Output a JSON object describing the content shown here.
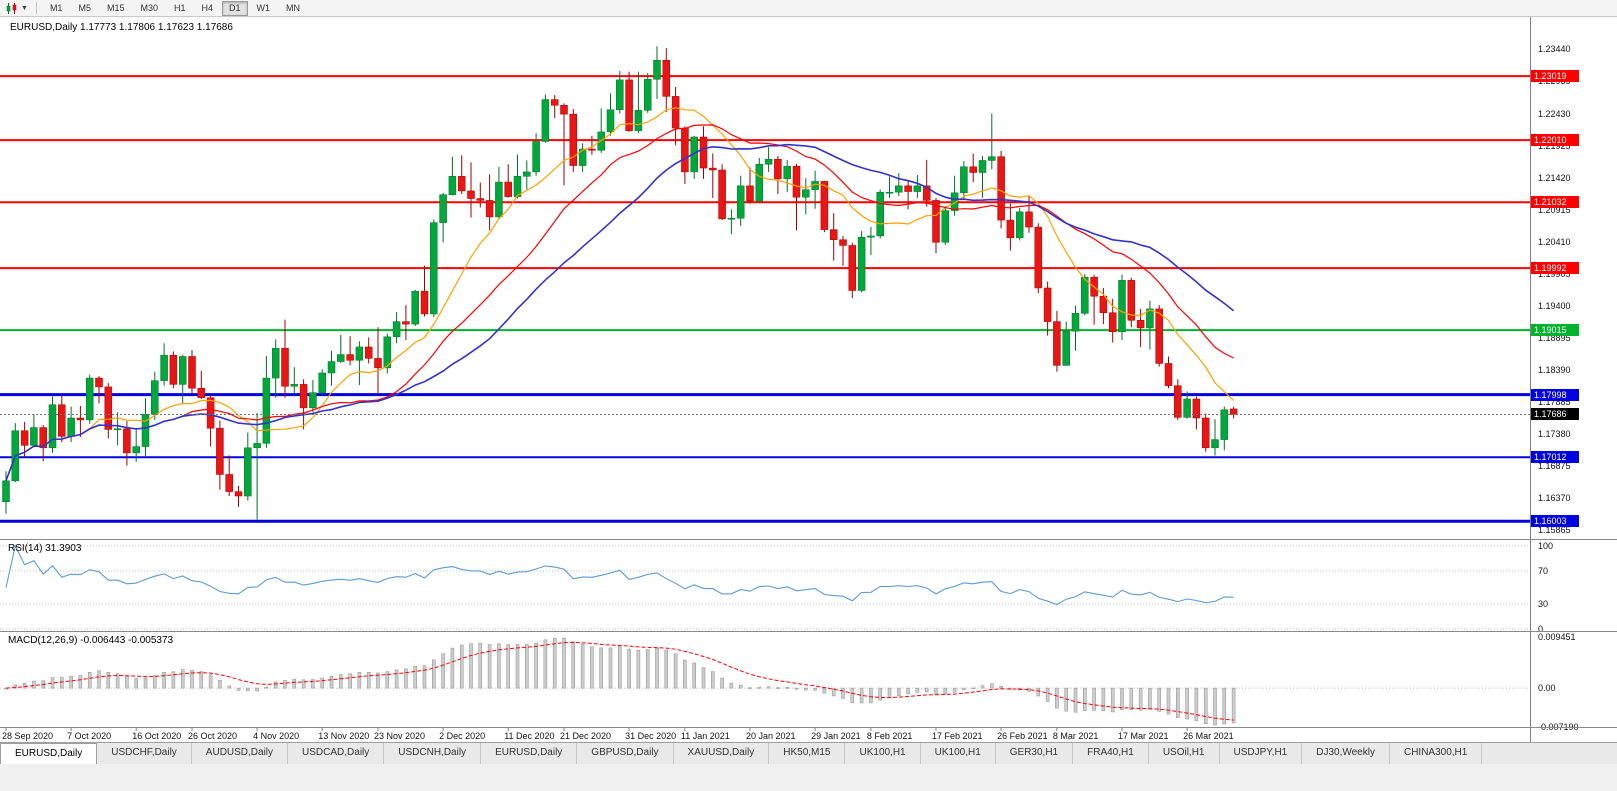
{
  "toolbar": {
    "timeframes": [
      "M1",
      "M5",
      "M15",
      "M30",
      "H1",
      "H4",
      "D1",
      "W1",
      "MN"
    ],
    "active_timeframe": "D1"
  },
  "panels": {
    "main_title": "EURUSD,Daily 1.17773 1.17806 1.17623 1.17686",
    "rsi_title": "RSI(14) 31.3903",
    "macd_title": "MACD(12,26,9) -0.006443 -0.005373"
  },
  "chart_data": {
    "type": "candlestick",
    "symbol": "EURUSD",
    "period": "Daily",
    "ohlc_current": {
      "open": "1.17773",
      "high": "1.17806",
      "low": "1.17623",
      "close": "1.17686"
    },
    "colors": {
      "up": "#00A83B",
      "up_border": "#00702A",
      "down": "#EA1515",
      "down_border": "#A00000"
    },
    "candles": [
      [
        1.1631,
        1.1679,
        1.1612,
        1.1664
      ],
      [
        1.1664,
        1.1755,
        1.1662,
        1.1743
      ],
      [
        1.1743,
        1.1757,
        1.1701,
        1.172
      ],
      [
        1.172,
        1.1769,
        1.1717,
        1.1748
      ],
      [
        1.1748,
        1.1752,
        1.1695,
        1.1716
      ],
      [
        1.1716,
        1.1797,
        1.1708,
        1.1784
      ],
      [
        1.1784,
        1.1798,
        1.1725,
        1.1734
      ],
      [
        1.1734,
        1.1781,
        1.1725,
        1.1763
      ],
      [
        1.1763,
        1.1782,
        1.1733,
        1.176
      ],
      [
        1.176,
        1.1831,
        1.1754,
        1.1826
      ],
      [
        1.1826,
        1.1829,
        1.1786,
        1.1812
      ],
      [
        1.1812,
        1.1818,
        1.1731,
        1.1745
      ],
      [
        1.1745,
        1.1772,
        1.172,
        1.1746
      ],
      [
        1.1746,
        1.1758,
        1.1688,
        1.1708
      ],
      [
        1.1708,
        1.1747,
        1.1694,
        1.1718
      ],
      [
        1.1718,
        1.1794,
        1.1703,
        1.1769
      ],
      [
        1.1769,
        1.1836,
        1.176,
        1.1822
      ],
      [
        1.1822,
        1.1881,
        1.1814,
        1.1862
      ],
      [
        1.1862,
        1.1868,
        1.181,
        1.1816
      ],
      [
        1.1816,
        1.1863,
        1.1785,
        1.186
      ],
      [
        1.186,
        1.187,
        1.1802,
        1.181
      ],
      [
        1.181,
        1.1837,
        1.1793,
        1.1795
      ],
      [
        1.1795,
        1.18,
        1.1718,
        1.1747
      ],
      [
        1.1747,
        1.1759,
        1.165,
        1.1674
      ],
      [
        1.1674,
        1.1704,
        1.164,
        1.1647
      ],
      [
        1.1647,
        1.1656,
        1.1623,
        1.164
      ],
      [
        1.164,
        1.174,
        1.1633,
        1.1716
      ],
      [
        1.1716,
        1.1771,
        1.1603,
        1.1723
      ],
      [
        1.1723,
        1.1861,
        1.1716,
        1.1826
      ],
      [
        1.1826,
        1.1887,
        1.1795,
        1.1873
      ],
      [
        1.1873,
        1.1918,
        1.1795,
        1.1813
      ],
      [
        1.1813,
        1.1843,
        1.18,
        1.1816
      ],
      [
        1.1816,
        1.1824,
        1.1745,
        1.1779
      ],
      [
        1.1779,
        1.1823,
        1.1772,
        1.1803
      ],
      [
        1.1803,
        1.184,
        1.1799,
        1.1834
      ],
      [
        1.1834,
        1.1869,
        1.1814,
        1.1852
      ],
      [
        1.1852,
        1.1894,
        1.185,
        1.1863
      ],
      [
        1.1863,
        1.1892,
        1.1846,
        1.1854
      ],
      [
        1.1854,
        1.1884,
        1.1815,
        1.1875
      ],
      [
        1.1875,
        1.189,
        1.1849,
        1.1857
      ],
      [
        1.1857,
        1.1906,
        1.18,
        1.1842
      ],
      [
        1.1842,
        1.1896,
        1.1833,
        1.1891
      ],
      [
        1.1891,
        1.193,
        1.1881,
        1.1915
      ],
      [
        1.1915,
        1.1941,
        1.1886,
        1.1911
      ],
      [
        1.1911,
        1.1965,
        1.1908,
        1.1963
      ],
      [
        1.1963,
        1.2003,
        1.1923,
        1.1927
      ],
      [
        1.1927,
        1.2076,
        1.1922,
        1.2071
      ],
      [
        1.2071,
        1.2118,
        1.204,
        1.2115
      ],
      [
        1.2115,
        1.2175,
        1.2114,
        1.2144
      ],
      [
        1.2144,
        1.2177,
        1.2116,
        1.2121
      ],
      [
        1.2121,
        1.2166,
        1.2079,
        1.2109
      ],
      [
        1.2109,
        1.2134,
        1.2095,
        1.2106
      ],
      [
        1.2106,
        1.2147,
        1.2059,
        1.208
      ],
      [
        1.208,
        1.2159,
        1.2076,
        1.2135
      ],
      [
        1.2135,
        1.2163,
        1.211,
        1.2112
      ],
      [
        1.2112,
        1.2178,
        1.2109,
        1.2144
      ],
      [
        1.2144,
        1.2169,
        1.2123,
        1.2151
      ],
      [
        1.2151,
        1.2212,
        1.2145,
        1.2199
      ],
      [
        1.2199,
        1.2273,
        1.2197,
        1.2265
      ],
      [
        1.2265,
        1.2272,
        1.2236,
        1.2256
      ],
      [
        1.2256,
        1.2259,
        1.213,
        1.2242
      ],
      [
        1.2242,
        1.225,
        1.2151,
        1.2161
      ],
      [
        1.2161,
        1.2196,
        1.2151,
        1.2187
      ],
      [
        1.2187,
        1.2208,
        1.2178,
        1.2185
      ],
      [
        1.2185,
        1.2251,
        1.2181,
        1.2214
      ],
      [
        1.2214,
        1.2275,
        1.2208,
        1.2249
      ],
      [
        1.2249,
        1.231,
        1.2243,
        1.2296
      ],
      [
        1.2296,
        1.2309,
        1.2214,
        1.2216
      ],
      [
        1.2216,
        1.2309,
        1.2212,
        1.2248
      ],
      [
        1.2248,
        1.2307,
        1.2244,
        1.2297
      ],
      [
        1.2297,
        1.2349,
        1.2266,
        1.2327
      ],
      [
        1.2327,
        1.2346,
        1.2245,
        1.227
      ],
      [
        1.227,
        1.2285,
        1.2193,
        1.222
      ],
      [
        1.222,
        1.2223,
        1.2132,
        1.2151
      ],
      [
        1.2151,
        1.2208,
        1.214,
        1.2206
      ],
      [
        1.2206,
        1.2223,
        1.214,
        1.2157
      ],
      [
        1.2157,
        1.218,
        1.211,
        1.2154
      ],
      [
        1.2154,
        1.2163,
        1.2075,
        1.2077
      ],
      [
        1.2077,
        1.2092,
        1.2053,
        1.2078
      ],
      [
        1.2078,
        1.2145,
        1.2066,
        1.2129
      ],
      [
        1.2129,
        1.2158,
        1.2101,
        1.2105
      ],
      [
        1.2105,
        1.2173,
        1.2103,
        1.2163
      ],
      [
        1.2163,
        1.219,
        1.2151,
        1.2171
      ],
      [
        1.2171,
        1.2176,
        1.2116,
        1.214
      ],
      [
        1.214,
        1.217,
        1.2119,
        1.216
      ],
      [
        1.216,
        1.2164,
        1.2059,
        1.2111
      ],
      [
        1.2111,
        1.2141,
        1.2084,
        1.2123
      ],
      [
        1.2123,
        1.2153,
        1.2093,
        1.2136
      ],
      [
        1.2136,
        1.2137,
        1.2056,
        1.206
      ],
      [
        1.206,
        1.2086,
        1.2011,
        1.2044
      ],
      [
        1.2044,
        1.205,
        1.2003,
        1.2035
      ],
      [
        1.2035,
        1.2039,
        1.1952,
        1.1964
      ],
      [
        1.1964,
        1.2058,
        1.1961,
        1.2048
      ],
      [
        1.2048,
        1.2064,
        1.202,
        1.205
      ],
      [
        1.205,
        1.2123,
        1.2046,
        1.2119
      ],
      [
        1.2119,
        1.2144,
        1.211,
        1.2119
      ],
      [
        1.2119,
        1.2149,
        1.2113,
        1.2129
      ],
      [
        1.2129,
        1.2137,
        1.2092,
        1.212
      ],
      [
        1.212,
        1.2146,
        1.211,
        1.2129
      ],
      [
        1.2129,
        1.217,
        1.2096,
        1.2106
      ],
      [
        1.2106,
        1.211,
        1.2023,
        1.204
      ],
      [
        1.204,
        1.2097,
        1.2036,
        1.209
      ],
      [
        1.209,
        1.2145,
        1.2082,
        1.2118
      ],
      [
        1.2118,
        1.2168,
        1.2108,
        1.2159
      ],
      [
        1.2159,
        1.218,
        1.2135,
        1.215
      ],
      [
        1.215,
        1.2176,
        1.211,
        1.2169
      ],
      [
        1.2169,
        1.2243,
        1.2155,
        1.2175
      ],
      [
        1.2175,
        1.2184,
        1.2062,
        1.2075
      ],
      [
        1.2075,
        1.2101,
        1.2027,
        1.2047
      ],
      [
        1.2047,
        1.2094,
        1.2043,
        1.2088
      ],
      [
        1.2088,
        1.2113,
        1.2055,
        1.2064
      ],
      [
        1.2064,
        1.207,
        1.196,
        1.1968
      ],
      [
        1.1968,
        1.1978,
        1.1893,
        1.1915
      ],
      [
        1.1915,
        1.1932,
        1.1836,
        1.1846
      ],
      [
        1.1846,
        1.1915,
        1.1846,
        1.19
      ],
      [
        1.19,
        1.194,
        1.1869,
        1.1928
      ],
      [
        1.1928,
        1.199,
        1.1925,
        1.1985
      ],
      [
        1.1985,
        1.1989,
        1.191,
        1.1955
      ],
      [
        1.1955,
        1.1968,
        1.1911,
        1.1929
      ],
      [
        1.1929,
        1.1951,
        1.1882,
        1.1899
      ],
      [
        1.1899,
        1.1989,
        1.1886,
        1.198
      ],
      [
        1.198,
        1.1984,
        1.1906,
        1.1917
      ],
      [
        1.1917,
        1.1935,
        1.1875,
        1.1905
      ],
      [
        1.1905,
        1.1948,
        1.1871,
        1.1935
      ],
      [
        1.1935,
        1.1941,
        1.1844,
        1.1849
      ],
      [
        1.1849,
        1.186,
        1.181,
        1.1814
      ],
      [
        1.1814,
        1.1824,
        1.176,
        1.1764
      ],
      [
        1.1764,
        1.1805,
        1.1762,
        1.1793
      ],
      [
        1.1793,
        1.1797,
        1.1745,
        1.1763
      ],
      [
        1.1763,
        1.177,
        1.171,
        1.1716
      ],
      [
        1.1716,
        1.1761,
        1.1704,
        1.1729
      ],
      [
        1.1729,
        1.1781,
        1.1712,
        1.1776
      ],
      [
        1.17773,
        1.17806,
        1.17623,
        1.17686
      ]
    ],
    "x_tick_labels": [
      {
        "i": 0,
        "label": "28 Sep 2020"
      },
      {
        "i": 7,
        "label": "7 Oct 2020"
      },
      {
        "i": 14,
        "label": "16 Oct 2020"
      },
      {
        "i": 20,
        "label": "26 Oct 2020"
      },
      {
        "i": 27,
        "label": "4 Nov 2020"
      },
      {
        "i": 34,
        "label": "13 Nov 2020"
      },
      {
        "i": 40,
        "label": "23 Nov 2020"
      },
      {
        "i": 47,
        "label": "2 Dec 2020"
      },
      {
        "i": 54,
        "label": "11 Dec 2020"
      },
      {
        "i": 60,
        "label": "21 Dec 2020"
      },
      {
        "i": 67,
        "label": "31 Dec 2020"
      },
      {
        "i": 73,
        "label": "11 Jan 2021"
      },
      {
        "i": 80,
        "label": "20 Jan 2021"
      },
      {
        "i": 87,
        "label": "29 Jan 2021"
      },
      {
        "i": 93,
        "label": "8 Feb 2021"
      },
      {
        "i": 100,
        "label": "17 Feb 2021"
      },
      {
        "i": 107,
        "label": "26 Feb 2021"
      },
      {
        "i": 113,
        "label": "8 Mar 2021"
      },
      {
        "i": 120,
        "label": "17 Mar 2021"
      },
      {
        "i": 127,
        "label": "26 Mar 2021"
      }
    ],
    "y_axis": {
      "ticks": [
        {
          "v": 1.2344,
          "label": "1.23440"
        },
        {
          "v": 1.22935,
          "label": "1.22935"
        },
        {
          "v": 1.2243,
          "label": "1.22430"
        },
        {
          "v": 1.21925,
          "label": "1.21925"
        },
        {
          "v": 1.2142,
          "label": "1.21420"
        },
        {
          "v": 1.20915,
          "label": "1.20915"
        },
        {
          "v": 1.2041,
          "label": "1.20410"
        },
        {
          "v": 1.19905,
          "label": "1.19905"
        },
        {
          "v": 1.194,
          "label": "1.19400"
        },
        {
          "v": 1.18895,
          "label": "1.18895"
        },
        {
          "v": 1.1839,
          "label": "1.18390"
        },
        {
          "v": 1.17885,
          "label": "1.17885"
        },
        {
          "v": 1.1738,
          "label": "1.17380"
        },
        {
          "v": 1.16875,
          "label": "1.16875"
        },
        {
          "v": 1.1637,
          "label": "1.16370"
        },
        {
          "v": 1.15865,
          "label": "1.15865"
        }
      ]
    },
    "hlines": [
      {
        "price": 1.23019,
        "label": "1.23019",
        "color": "#FF0000",
        "width": 2
      },
      {
        "price": 1.2201,
        "label": "1.22010",
        "color": "#FF0000",
        "width": 2
      },
      {
        "price": 1.21032,
        "label": "1.21032",
        "color": "#FF0000",
        "width": 2
      },
      {
        "price": 1.19992,
        "label": "1.19992",
        "color": "#FF0000",
        "width": 2
      },
      {
        "price": 1.19015,
        "label": "1.19015",
        "color": "#00B22D",
        "width": 2
      },
      {
        "price": 1.17998,
        "label": "1.17998",
        "color": "#0000E1",
        "width": 3
      },
      {
        "price": 1.17012,
        "label": "1.17012",
        "color": "#0000E1",
        "width": 2
      },
      {
        "price": 1.16003,
        "label": "1.16003",
        "color": "#0000E1",
        "width": 3
      }
    ],
    "bid_line": {
      "price": 1.17686,
      "label": "1.17686",
      "color": "#000000"
    },
    "moving_averages": [
      {
        "period": 10,
        "color": "#FFA000",
        "width": 1.2
      },
      {
        "period": 20,
        "color": "#FF0000",
        "width": 1.2
      },
      {
        "period": 30,
        "color": "#3333CC",
        "width": 1.6
      }
    ],
    "rsi": {
      "period": 14,
      "current": 31.3903,
      "color": "#5B9BD5",
      "range": [
        0,
        100
      ],
      "grid_levels": [
        100,
        70,
        30,
        0
      ],
      "axis": [
        {
          "v": 100,
          "label": "100"
        },
        {
          "v": 70,
          "label": "70"
        },
        {
          "v": 30,
          "label": "30"
        },
        {
          "v": 0,
          "label": "0"
        }
      ]
    },
    "macd": {
      "fast": 12,
      "slow": 26,
      "signal": 9,
      "current_macd": -0.006443,
      "current_signal": -0.005373,
      "range": [
        -0.00719,
        0.009451
      ],
      "histogram_color": "#CDCDCD",
      "histogram_border": "#8C8C8C",
      "signal_color": "#FF0000",
      "axis": [
        {
          "v": 0.009451,
          "label": "0.009451"
        },
        {
          "v": 0,
          "label": "0.00"
        },
        {
          "v": -0.00719,
          "label": "-0.007190"
        }
      ]
    }
  },
  "tabs": [
    {
      "label": "EURUSD,Daily",
      "active": true
    },
    {
      "label": "USDCHF,Daily",
      "active": false
    },
    {
      "label": "AUDUSD,Daily",
      "active": false
    },
    {
      "label": "USDCAD,Daily",
      "active": false
    },
    {
      "label": "USDCNH,Daily",
      "active": false
    },
    {
      "label": "EURUSD,Daily",
      "active": false
    },
    {
      "label": "GBPUSD,Daily",
      "active": false
    },
    {
      "label": "XAUUSD,Daily",
      "active": false
    },
    {
      "label": "HK50,M15",
      "active": false
    },
    {
      "label": "UK100,H1",
      "active": false
    },
    {
      "label": "UK100,H1",
      "active": false
    },
    {
      "label": "GER30,H1",
      "active": false
    },
    {
      "label": "FRA40,H1",
      "active": false
    },
    {
      "label": "USOil,H1",
      "active": false
    },
    {
      "label": "USDJPY,H1",
      "active": false
    },
    {
      "label": "DJ30,Weekly",
      "active": false
    },
    {
      "label": "CHINA300,H1",
      "active": false
    }
  ]
}
